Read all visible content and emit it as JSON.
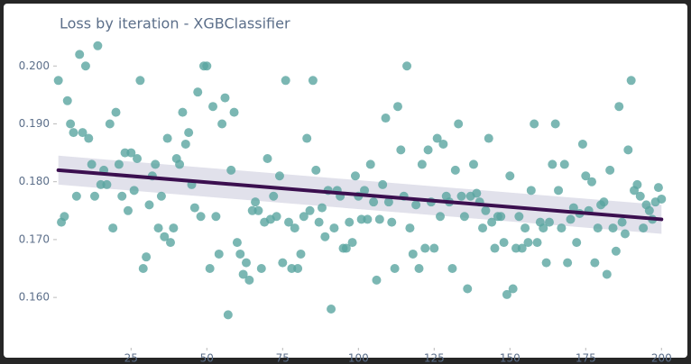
{
  "chart_data": {
    "type": "scatter",
    "title": "Loss by iteration - XGBClassifier",
    "x": [
      1,
      2,
      3,
      4,
      5,
      6,
      7,
      8,
      9,
      10,
      11,
      12,
      13,
      14,
      15,
      16,
      17,
      18,
      19,
      20,
      21,
      22,
      23,
      24,
      25,
      26,
      27,
      28,
      29,
      30,
      31,
      32,
      33,
      34,
      35,
      36,
      37,
      38,
      39,
      40,
      41,
      42,
      43,
      44,
      45,
      46,
      47,
      48,
      49,
      50,
      51,
      52,
      53,
      54,
      55,
      56,
      57,
      58,
      59,
      60,
      61,
      62,
      63,
      64,
      65,
      66,
      67,
      68,
      69,
      70,
      71,
      72,
      73,
      74,
      75,
      76,
      77,
      78,
      79,
      80,
      81,
      82,
      83,
      84,
      85,
      86,
      87,
      88,
      89,
      90,
      91,
      92,
      93,
      94,
      95,
      96,
      97,
      98,
      99,
      100,
      101,
      102,
      103,
      104,
      105,
      106,
      107,
      108,
      109,
      110,
      111,
      112,
      113,
      114,
      115,
      116,
      117,
      118,
      119,
      120,
      121,
      122,
      123,
      124,
      125,
      126,
      127,
      128,
      129,
      130,
      131,
      132,
      133,
      134,
      135,
      136,
      137,
      138,
      139,
      140,
      141,
      142,
      143,
      144,
      145,
      146,
      147,
      148,
      149,
      150,
      151,
      152,
      153,
      154,
      155,
      156,
      157,
      158,
      159,
      160,
      161,
      162,
      163,
      164,
      165,
      166,
      167,
      168,
      169,
      170,
      171,
      172,
      173,
      174,
      175,
      176,
      177,
      178,
      179,
      180,
      181,
      182,
      183,
      184,
      185,
      186,
      187,
      188,
      189,
      190,
      191,
      192,
      193,
      194,
      195,
      196,
      197,
      198,
      199,
      200
    ],
    "values": [
      0.1975,
      0.173,
      0.174,
      0.194,
      0.19,
      0.1885,
      0.1775,
      0.202,
      0.1885,
      0.2,
      0.1875,
      0.183,
      0.1775,
      0.2035,
      0.1795,
      0.182,
      0.1795,
      0.19,
      0.172,
      0.192,
      0.183,
      0.1775,
      0.185,
      0.175,
      0.185,
      0.1785,
      0.184,
      0.1975,
      0.165,
      0.167,
      0.176,
      0.181,
      0.183,
      0.172,
      0.1775,
      0.1705,
      0.1875,
      0.1695,
      0.172,
      0.184,
      0.183,
      0.192,
      0.1865,
      0.1885,
      0.1795,
      0.1755,
      0.1955,
      0.174,
      0.2,
      0.2,
      0.165,
      0.193,
      0.174,
      0.1675,
      0.19,
      0.1945,
      0.157,
      0.182,
      0.192,
      0.1695,
      0.1675,
      0.164,
      0.166,
      0.163,
      0.175,
      0.1765,
      0.175,
      0.165,
      0.173,
      0.184,
      0.1735,
      0.1775,
      0.174,
      0.181,
      0.166,
      0.1975,
      0.173,
      0.165,
      0.172,
      0.165,
      0.1675,
      0.174,
      0.1875,
      0.175,
      0.1975,
      0.182,
      0.173,
      0.1755,
      0.1705,
      0.1785,
      0.158,
      0.172,
      0.1785,
      0.1775,
      0.1685,
      0.1685,
      0.173,
      0.1695,
      0.181,
      0.1775,
      0.1735,
      0.1785,
      0.1735,
      0.183,
      0.1765,
      0.163,
      0.1735,
      0.1795,
      0.191,
      0.1765,
      0.173,
      0.165,
      0.193,
      0.1855,
      0.1775,
      0.2,
      0.172,
      0.1675,
      0.176,
      0.165,
      0.183,
      0.1685,
      0.1855,
      0.1765,
      0.1685,
      0.1875,
      0.174,
      0.1865,
      0.1775,
      0.1765,
      0.165,
      0.182,
      0.19,
      0.1775,
      0.174,
      0.1615,
      0.1775,
      0.183,
      0.178,
      0.1765,
      0.172,
      0.175,
      0.1875,
      0.173,
      0.1685,
      0.174,
      0.174,
      0.1695,
      0.1605,
      0.181,
      0.1615,
      0.1685,
      0.174,
      0.1685,
      0.172,
      0.1695,
      0.1785,
      0.19,
      0.1695,
      0.173,
      0.172,
      0.166,
      0.173,
      0.183,
      0.19,
      0.1785,
      0.172,
      0.183,
      0.166,
      0.1735,
      0.1755,
      0.1695,
      0.1745,
      0.1865,
      0.181,
      0.175,
      0.18,
      0.166,
      0.172,
      0.176,
      0.1765,
      0.164,
      0.182,
      0.172,
      0.168,
      0.193,
      0.173,
      0.171,
      0.1855,
      0.1975,
      0.1785,
      0.1795,
      0.1775,
      0.172,
      0.176,
      0.175,
      0.1735,
      0.1765,
      0.179,
      0.177
    ],
    "color": "#5aa5a0",
    "trend": {
      "x": [
        1,
        200
      ],
      "values": [
        0.182,
        0.1735
      ],
      "lower": [
        0.1795,
        0.171
      ],
      "upper": [
        0.1845,
        0.176
      ],
      "color": "#3b0f4f",
      "band_color": "#d9d9e6"
    },
    "xlim": [
      0.5,
      202
    ],
    "ylim": [
      0.1513,
      0.2044
    ],
    "xticks": [
      25,
      50,
      75,
      100,
      125,
      150,
      175,
      200
    ],
    "yticks": [
      {
        "value": 0.16,
        "label": "0.160"
      },
      {
        "value": 0.17,
        "label": "0.170"
      },
      {
        "value": 0.18,
        "label": "0.180"
      },
      {
        "value": 0.19,
        "label": "0.190"
      },
      {
        "value": 0.2,
        "label": "0.200"
      }
    ]
  }
}
